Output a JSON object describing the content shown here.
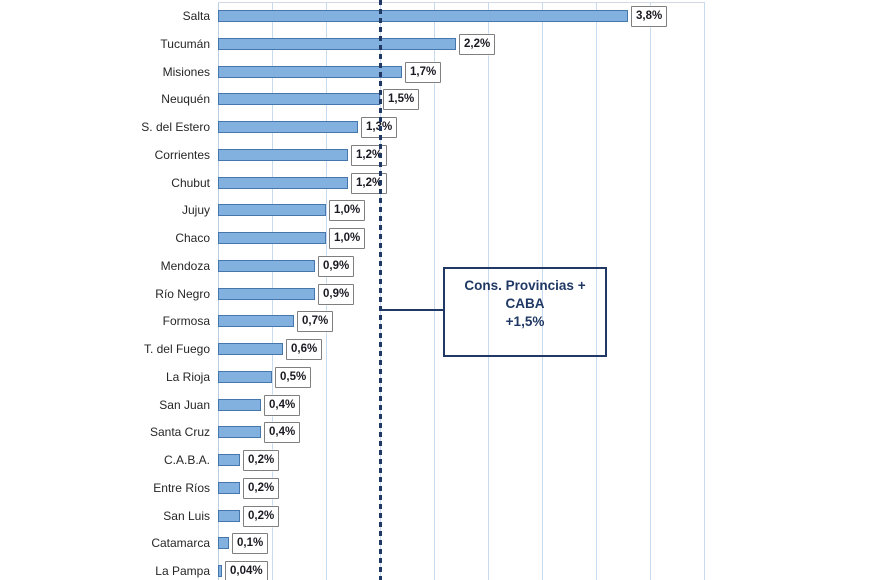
{
  "chart_data": {
    "type": "bar",
    "orientation": "horizontal",
    "title": "",
    "xlabel": "",
    "ylabel": "",
    "categories": [
      "Salta",
      "Tucumán",
      "Misiones",
      "Neuquén",
      "S. del Estero",
      "Corrientes",
      "Chubut",
      "Jujuy",
      "Chaco",
      "Mendoza",
      "Río Negro",
      "Formosa",
      "T. del Fuego",
      "La Rioja",
      "San Juan",
      "Santa Cruz",
      "C.A.B.A.",
      "Entre Ríos",
      "San Luis",
      "Catamarca",
      "La Pampa"
    ],
    "values": [
      3.8,
      2.2,
      1.7,
      1.5,
      1.3,
      1.2,
      1.2,
      1.0,
      1.0,
      0.9,
      0.9,
      0.7,
      0.6,
      0.5,
      0.4,
      0.4,
      0.2,
      0.2,
      0.2,
      0.1,
      0.04
    ],
    "value_labels": [
      "3,8%",
      "2,2%",
      "1,7%",
      "1,5%",
      "1,3%",
      "1,2%",
      "1,2%",
      "1,0%",
      "1,0%",
      "0,9%",
      "0,9%",
      "0,7%",
      "0,6%",
      "0,5%",
      "0,4%",
      "0,4%",
      "0,2%",
      "0,2%",
      "0,2%",
      "0,1%",
      "0,04%"
    ],
    "xlim": [
      0,
      4.5
    ],
    "grid_step": 0.5,
    "grid": "vertical",
    "legend": "none",
    "reference_line": {
      "value": 1.5,
      "style": "dashed"
    },
    "annotation": {
      "line1": "Cons. Provincias +",
      "line2": "CABA",
      "line3": "+1,5%",
      "points_to_value": 1.5
    }
  },
  "colors": {
    "background": "#ffffff",
    "bar_fill": "#82b1e0",
    "bar_border": "#4577ad",
    "grid_line": "#c7dbf0",
    "axis_line": "#b9cde3",
    "top_border": "#d2d9e2",
    "reference_line": "#1f3864",
    "annotation_border": "#1f3864",
    "annotation_text": "#1f3864",
    "value_box_border": "#7f7f7f",
    "value_text": "#1a1a22",
    "category_text": "#262626"
  }
}
